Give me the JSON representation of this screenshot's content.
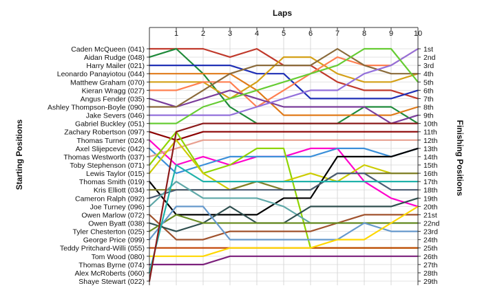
{
  "chart_data": {
    "type": "line",
    "title": "Laps",
    "ylabel_left": "Starting Positions",
    "ylabel_right": "Finishing Positions",
    "x": [
      0,
      1,
      2,
      3,
      4,
      5,
      6,
      7,
      8,
      9,
      10
    ],
    "x_tick_labels": [
      "1",
      "2",
      "3",
      "4",
      "5",
      "6",
      "7",
      "8",
      "9",
      "10"
    ],
    "xlim": [
      0,
      10
    ],
    "ylim": [
      1,
      29
    ],
    "grid": true,
    "starting_grid": [
      "Caden McQueen (041)",
      "Aidan Rudge (048)",
      "Harry Mailer (021)",
      "Leonardo Panayiotou (044)",
      "Matthew Graham (070)",
      "Kieran Wragg (027)",
      "Angus Fender (035)",
      "Ashley Thompson-Boyle (090)",
      "Jake Severs (046)",
      "Gabriel Buckley (051)",
      "Zachary Robertson (097)",
      "Thomas Turner (024)",
      "Axel Slijepcevic (042)",
      "Thomas Westworth (037)",
      "Toby Stephenson (071)",
      "Lewis Taylor (015)",
      "Thomas Smith (019)",
      "Kris Elliott (034)",
      "Cameron Ralph (092)",
      "Joe Turney (096)",
      "Owen Marlow (072)",
      "Owen Byatt (038)",
      "Tyler Chesterton (025)",
      "George Price (099)",
      "Teddy Pritchard-Willi (055)",
      "Tom Wood (080)",
      "Thomas Byrne (074)",
      "Alex McRoberts (060)",
      "Shaye Stewart (022)"
    ],
    "finishing_labels": [
      "1st",
      "2nd",
      "3rd",
      "4th",
      "5th",
      "6th",
      "7th",
      "8th",
      "9th",
      "10th",
      "11th",
      "12th",
      "13th",
      "14th",
      "15th",
      "16th",
      "17th",
      "18th",
      "19th",
      "20th",
      "21st",
      "22nd",
      "23rd",
      "24th",
      "25th",
      "26th",
      "27th",
      "28th",
      "29th"
    ],
    "series": [
      {
        "start": 1,
        "color": "#c0392b",
        "positions": [
          1,
          1,
          1,
          2,
          1,
          3,
          3,
          5,
          6,
          6,
          7
        ]
      },
      {
        "start": 2,
        "color": "#1f8a3a",
        "positions": [
          2,
          1,
          4,
          8,
          10,
          10,
          10,
          10,
          8,
          8,
          10
        ]
      },
      {
        "start": 3,
        "color": "#1f2fb5",
        "positions": [
          3,
          3,
          3,
          3,
          4,
          4,
          7,
          7,
          7,
          7,
          6
        ]
      },
      {
        "start": 4,
        "color": "#e07b1a",
        "positions": [
          4,
          4,
          4,
          4,
          6,
          9,
          9,
          9,
          9,
          9,
          8
        ]
      },
      {
        "start": 5,
        "color": "#d4a017",
        "positions": [
          5,
          5,
          5,
          7,
          5,
          2,
          2,
          4,
          5,
          5,
          4
        ]
      },
      {
        "start": 6,
        "color": "#ff7f50",
        "positions": [
          6,
          6,
          5,
          5,
          8,
          6,
          4,
          2,
          3,
          3,
          1
        ]
      },
      {
        "start": 7,
        "color": "#7a3d9a",
        "positions": [
          7,
          8,
          7,
          6,
          7,
          8,
          8,
          8,
          8,
          10,
          9
        ]
      },
      {
        "start": 8,
        "color": "#8a6a3a",
        "positions": [
          8,
          8,
          6,
          4,
          3,
          3,
          3,
          1,
          3,
          4,
          4
        ]
      },
      {
        "start": 9,
        "color": "#9370db",
        "positions": [
          9,
          9,
          9,
          9,
          8,
          7,
          6,
          6,
          4,
          3,
          1
        ]
      },
      {
        "start": 10,
        "color": "#66cc33",
        "positions": [
          10,
          10,
          8,
          7,
          6,
          5,
          4,
          3,
          1,
          1,
          5
        ]
      },
      {
        "start": 11,
        "color": "#8b0000",
        "positions": [
          11,
          12,
          11,
          11,
          11,
          11,
          11,
          11,
          11,
          11,
          11
        ]
      },
      {
        "start": 12,
        "color": "#ff00cc",
        "positions": [
          12,
          15,
          14,
          15,
          14,
          14,
          13,
          13,
          17,
          19,
          20
        ]
      },
      {
        "start": 13,
        "color": "#3b8fd9",
        "positions": [
          13,
          16,
          15,
          14,
          14,
          14,
          14,
          13,
          13,
          14,
          13
        ]
      },
      {
        "start": 14,
        "color": "#e8a090",
        "positions": [
          14,
          13,
          12,
          12,
          12,
          12,
          12,
          12,
          12,
          12,
          12
        ]
      },
      {
        "start": 15,
        "color": "#8fd400",
        "positions": [
          15,
          11,
          16,
          15,
          13,
          13,
          25,
          25,
          25,
          25,
          25
        ]
      },
      {
        "start": 16,
        "color": "#cccc00",
        "positions": [
          16,
          12,
          16,
          18,
          17,
          17,
          16,
          17,
          15,
          16,
          16
        ]
      },
      {
        "start": 17,
        "color": "#000000",
        "positions": [
          17,
          21,
          21,
          21,
          21,
          19,
          19,
          14,
          14,
          14,
          13
        ]
      },
      {
        "start": 18,
        "color": "#7f7f2a",
        "positions": [
          18,
          18,
          18,
          18,
          17,
          18,
          18,
          16,
          16,
          16,
          16
        ]
      },
      {
        "start": 19,
        "color": "#4b5c73",
        "positions": [
          19,
          18,
          18,
          18,
          18,
          18,
          18,
          16,
          16,
          18,
          18
        ]
      },
      {
        "start": 20,
        "color": "#5fa8a8",
        "positions": [
          20,
          17,
          19,
          19,
          19,
          20,
          22,
          22,
          22,
          22,
          22
        ]
      },
      {
        "start": 21,
        "color": "#a0522d",
        "positions": [
          21,
          24,
          24,
          23,
          23,
          23,
          23,
          22,
          21,
          21,
          21
        ]
      },
      {
        "start": 22,
        "color": "#2f4f4f",
        "positions": [
          22,
          23,
          22,
          20,
          22,
          22,
          20,
          20,
          20,
          20,
          19
        ]
      },
      {
        "start": 23,
        "color": "#6b8e23",
        "positions": [
          23,
          21,
          22,
          22,
          22,
          22,
          22,
          22,
          22,
          22,
          22
        ]
      },
      {
        "start": 24,
        "color": "#6699cc",
        "positions": [
          24,
          20,
          20,
          24,
          24,
          24,
          24,
          24,
          22,
          23,
          23
        ]
      },
      {
        "start": 25,
        "color": "#c04000",
        "positions": [
          25,
          25,
          25,
          25,
          25,
          25,
          25,
          25,
          25,
          25,
          25
        ]
      },
      {
        "start": 26,
        "color": "#ffd700",
        "positions": [
          26,
          26,
          26,
          25,
          25,
          25,
          25,
          24,
          24,
          22,
          20
        ]
      },
      {
        "start": 27,
        "color": "#7b1f7b",
        "positions": [
          27,
          27,
          27,
          26,
          26,
          26,
          26,
          26,
          26,
          26,
          26
        ]
      },
      {
        "start": 28,
        "color": "#20b2aa",
        "positions": [
          28,
          15,
          17,
          17,
          17,
          17,
          17,
          17,
          17,
          17,
          17
        ]
      },
      {
        "start": 29,
        "color": "#8b1a1a",
        "positions": [
          29,
          11,
          10,
          10,
          10,
          10,
          10,
          10,
          10,
          10,
          10
        ]
      }
    ]
  }
}
